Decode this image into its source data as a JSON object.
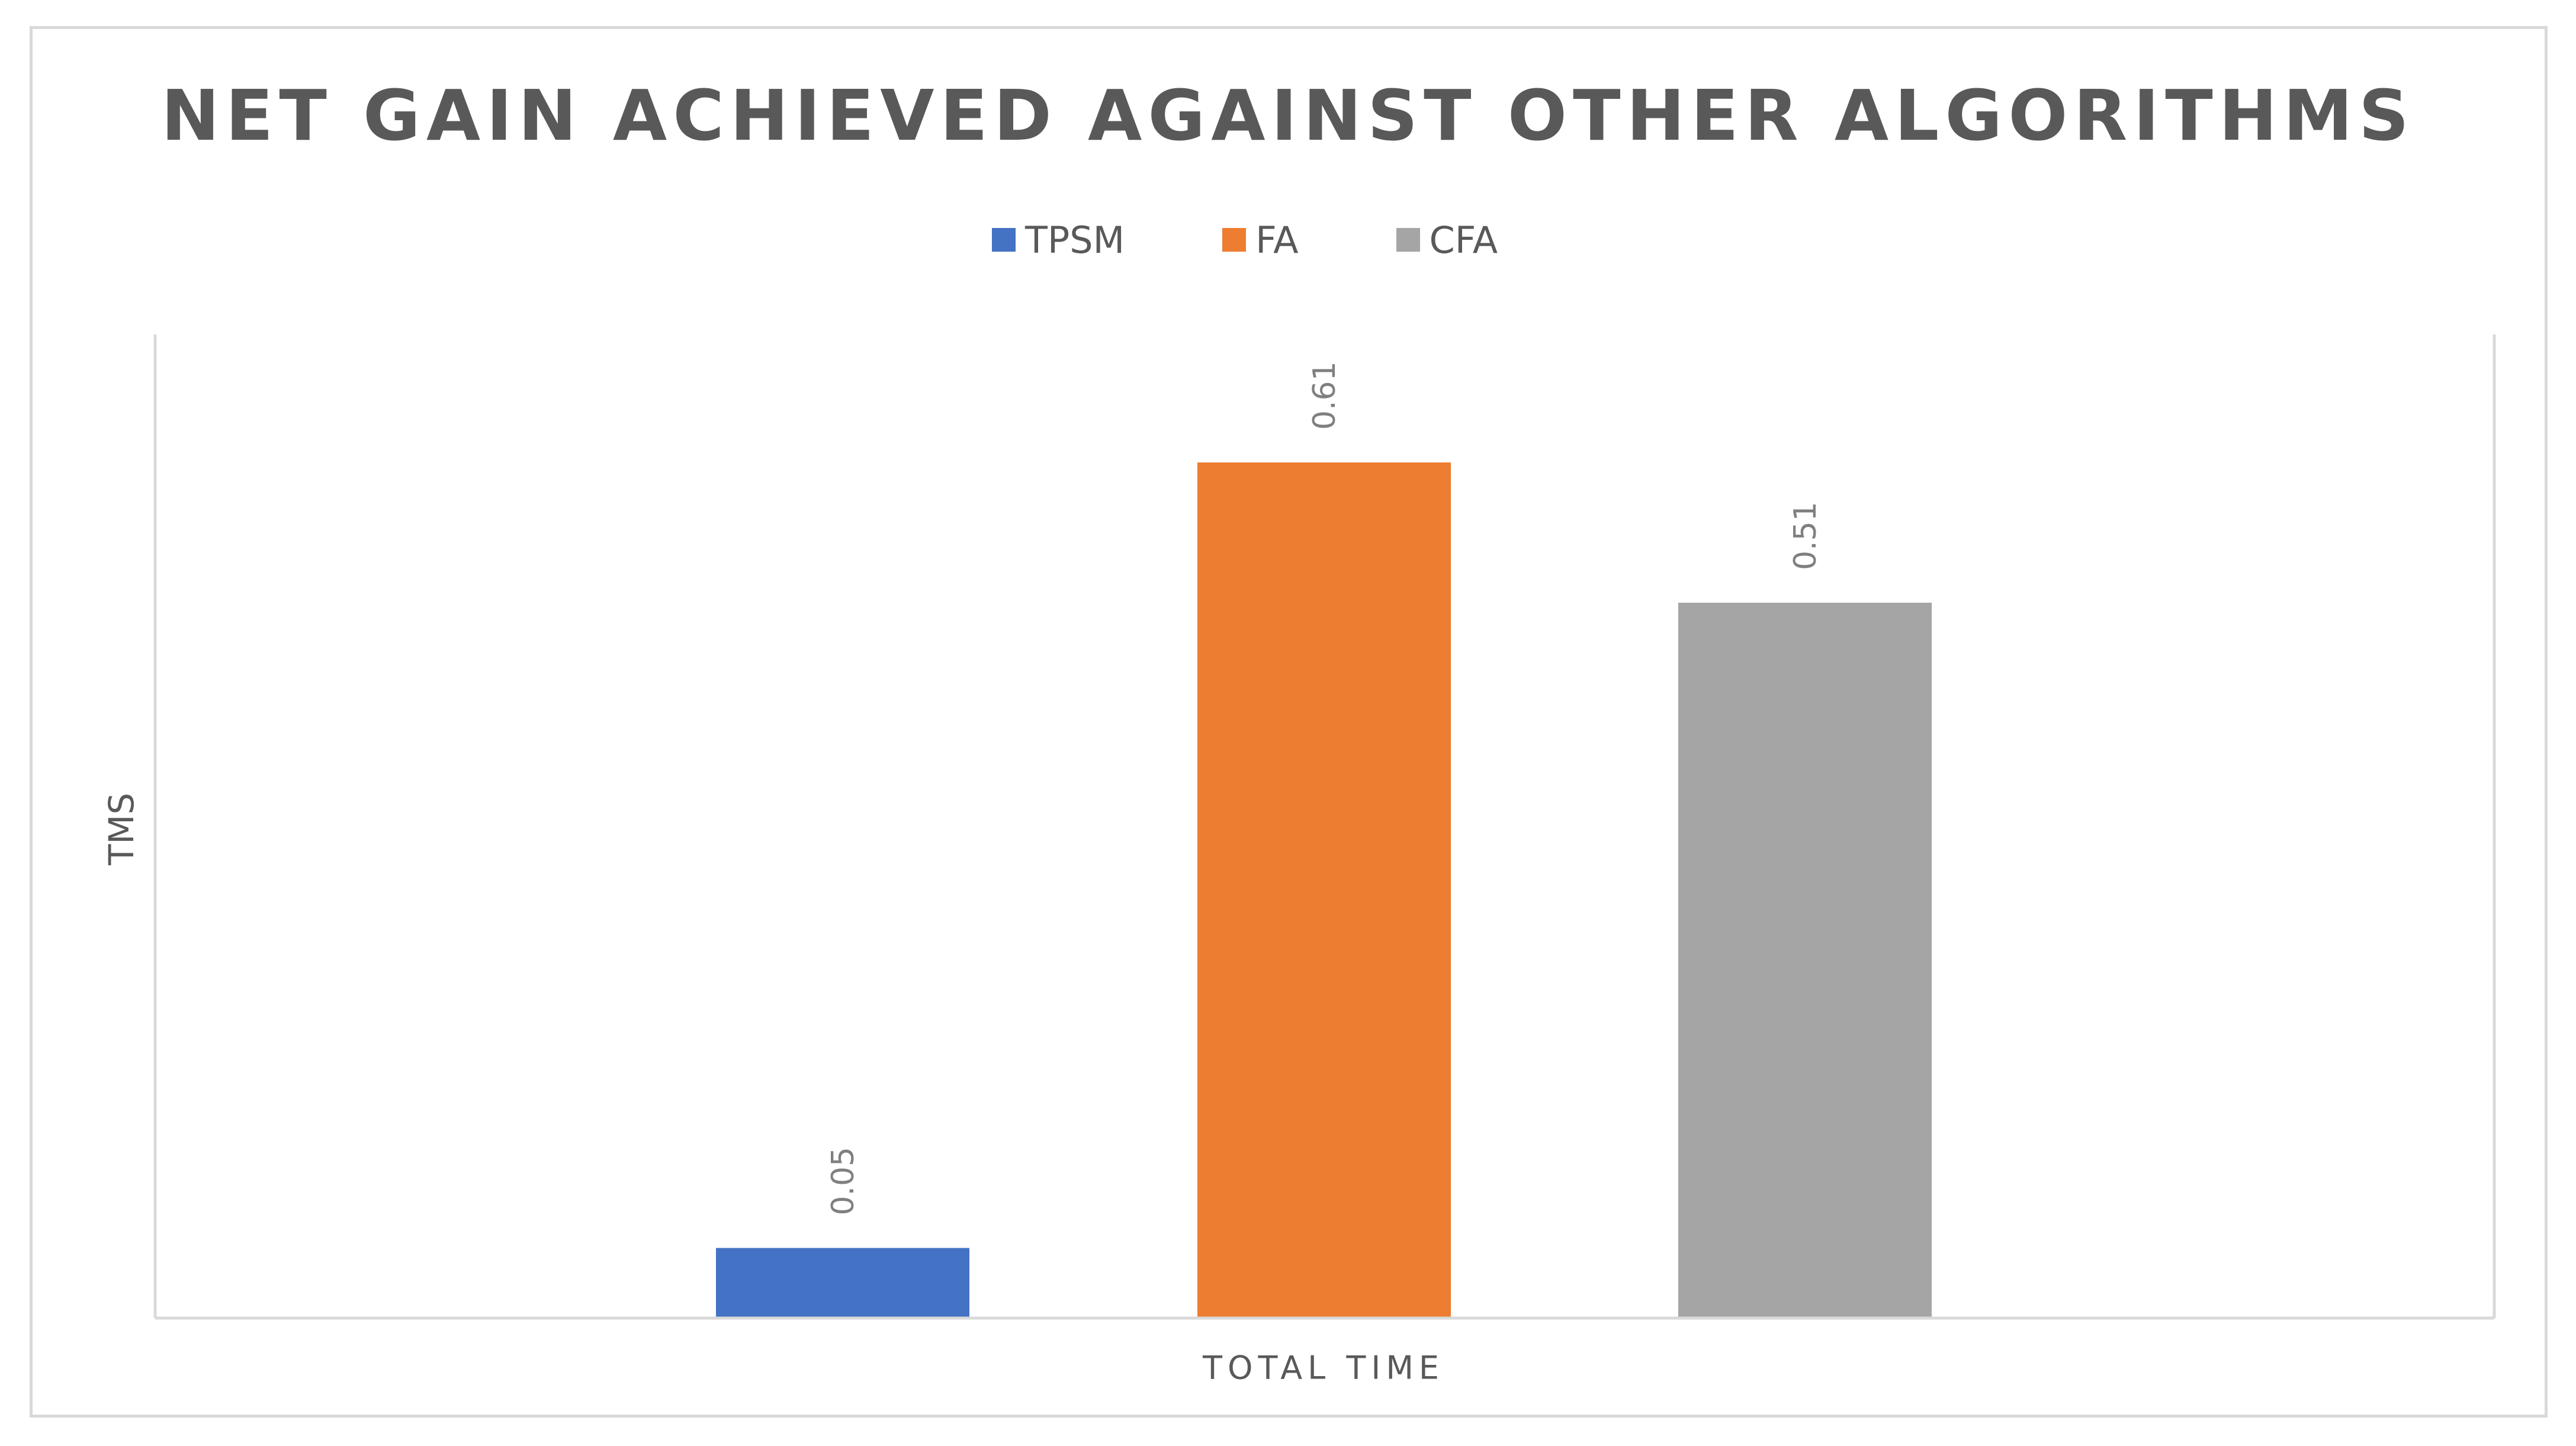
{
  "chart_data": {
    "type": "bar",
    "title": "NET GAIN ACHIEVED AGAINST OTHER ALGORITHMS",
    "xlabel": "TOTAL TIME",
    "ylabel": "TMS",
    "categories": [
      "TOTAL TIME"
    ],
    "series": [
      {
        "name": "TPSM",
        "values": [
          0.05
        ],
        "color": "#4472c4",
        "label": "0.05"
      },
      {
        "name": "FA",
        "values": [
          0.61
        ],
        "color": "#ed7d31",
        "label": "0.61"
      },
      {
        "name": "CFA",
        "values": [
          0.51
        ],
        "color": "#a5a5a5",
        "label": "0.51"
      }
    ],
    "ylim": [
      0,
      0.7
    ],
    "grid": false,
    "legend": "top"
  }
}
